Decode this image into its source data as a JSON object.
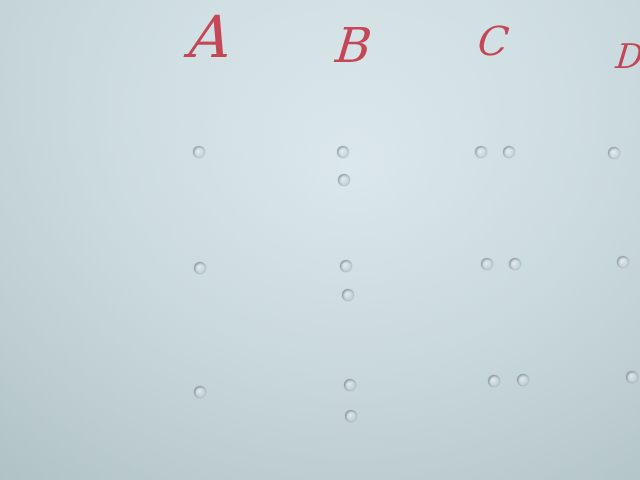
{
  "columns": [
    {
      "letter": "A"
    },
    {
      "letter": "B"
    },
    {
      "letter": "C"
    },
    {
      "letter": "D"
    }
  ]
}
